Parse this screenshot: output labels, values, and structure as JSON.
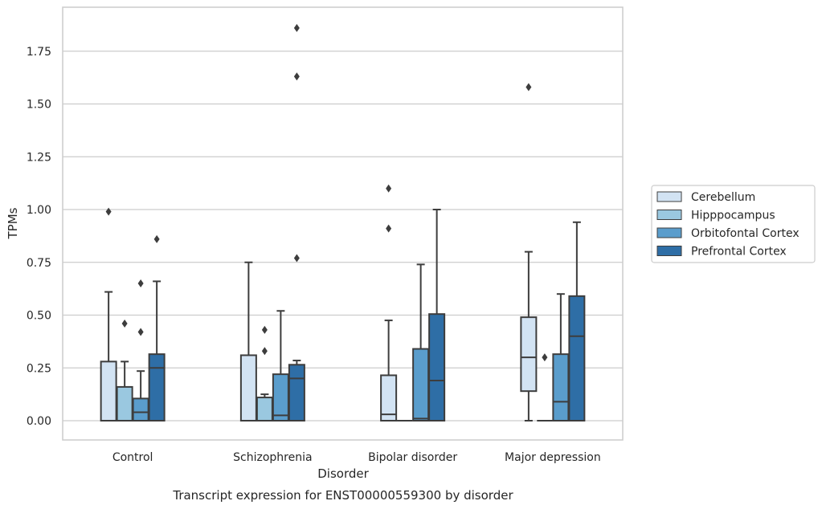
{
  "chart_data": {
    "type": "box",
    "title": "Transcript expression for ENST00000559300 by disorder",
    "xlabel": "Disorder",
    "ylabel": "TPMs",
    "ylim": [
      -0.09,
      1.95
    ],
    "yticks": [
      0.0,
      0.25,
      0.5,
      0.75,
      1.0,
      1.25,
      1.5,
      1.75
    ],
    "ytick_labels": [
      "0.00",
      "0.25",
      "0.50",
      "0.75",
      "1.00",
      "1.25",
      "1.50",
      "1.75"
    ],
    "grid": true,
    "legend_position": "right",
    "categories": [
      "Control",
      "Schizophrenia",
      "Bipolar disorder",
      "Major depression"
    ],
    "series": [
      {
        "name": "Cerebellum",
        "color": "#d2e3f3",
        "boxes": [
          {
            "whislo": 0.0,
            "q1": 0.0,
            "med": 0.0,
            "q3": 0.28,
            "whishi": 0.61,
            "fliers": [
              0.99
            ]
          },
          {
            "whislo": 0.0,
            "q1": 0.0,
            "med": 0.0,
            "q3": 0.31,
            "whishi": 0.75,
            "fliers": []
          },
          {
            "whislo": 0.0,
            "q1": 0.0,
            "med": 0.03,
            "q3": 0.215,
            "whishi": 0.475,
            "fliers": [
              0.91,
              1.1
            ]
          },
          {
            "whislo": 0.0,
            "q1": 0.14,
            "med": 0.3,
            "q3": 0.49,
            "whishi": 0.8,
            "fliers": [
              1.58
            ]
          }
        ]
      },
      {
        "name": "Hipppocampus",
        "color": "#9ac8e0",
        "boxes": [
          {
            "whislo": 0.0,
            "q1": 0.0,
            "med": 0.0,
            "q3": 0.16,
            "whishi": 0.28,
            "fliers": [
              0.46
            ]
          },
          {
            "whislo": 0.0,
            "q1": 0.0,
            "med": 0.0,
            "q3": 0.11,
            "whishi": 0.125,
            "fliers": [
              0.33,
              0.43
            ]
          },
          {
            "whislo": 0.0,
            "q1": 0.0,
            "med": 0.0,
            "q3": 0.0,
            "whishi": 0.0,
            "fliers": []
          },
          {
            "whislo": 0.0,
            "q1": 0.0,
            "med": 0.0,
            "q3": 0.0,
            "whishi": 0.0,
            "fliers": [
              0.3
            ]
          }
        ]
      },
      {
        "name": "Orbitofontal Cortex",
        "color": "#5a9dcc",
        "boxes": [
          {
            "whislo": 0.0,
            "q1": 0.0,
            "med": 0.04,
            "q3": 0.105,
            "whishi": 0.235,
            "fliers": [
              0.42,
              0.65
            ]
          },
          {
            "whislo": 0.0,
            "q1": 0.0,
            "med": 0.025,
            "q3": 0.22,
            "whishi": 0.52,
            "fliers": []
          },
          {
            "whislo": 0.0,
            "q1": 0.0,
            "med": 0.01,
            "q3": 0.34,
            "whishi": 0.74,
            "fliers": []
          },
          {
            "whislo": 0.0,
            "q1": 0.0,
            "med": 0.09,
            "q3": 0.315,
            "whishi": 0.6,
            "fliers": []
          }
        ]
      },
      {
        "name": "Prefrontal Cortex",
        "color": "#2e6ea6",
        "boxes": [
          {
            "whislo": 0.0,
            "q1": 0.0,
            "med": 0.25,
            "q3": 0.315,
            "whishi": 0.66,
            "fliers": [
              0.86
            ]
          },
          {
            "whislo": 0.0,
            "q1": 0.0,
            "med": 0.2,
            "q3": 0.265,
            "whishi": 0.285,
            "fliers": [
              0.77,
              1.63,
              1.86
            ]
          },
          {
            "whislo": 0.0,
            "q1": 0.0,
            "med": 0.19,
            "q3": 0.505,
            "whishi": 1.0,
            "fliers": []
          },
          {
            "whislo": 0.0,
            "q1": 0.0,
            "med": 0.4,
            "q3": 0.59,
            "whishi": 0.94,
            "fliers": []
          }
        ]
      }
    ]
  }
}
